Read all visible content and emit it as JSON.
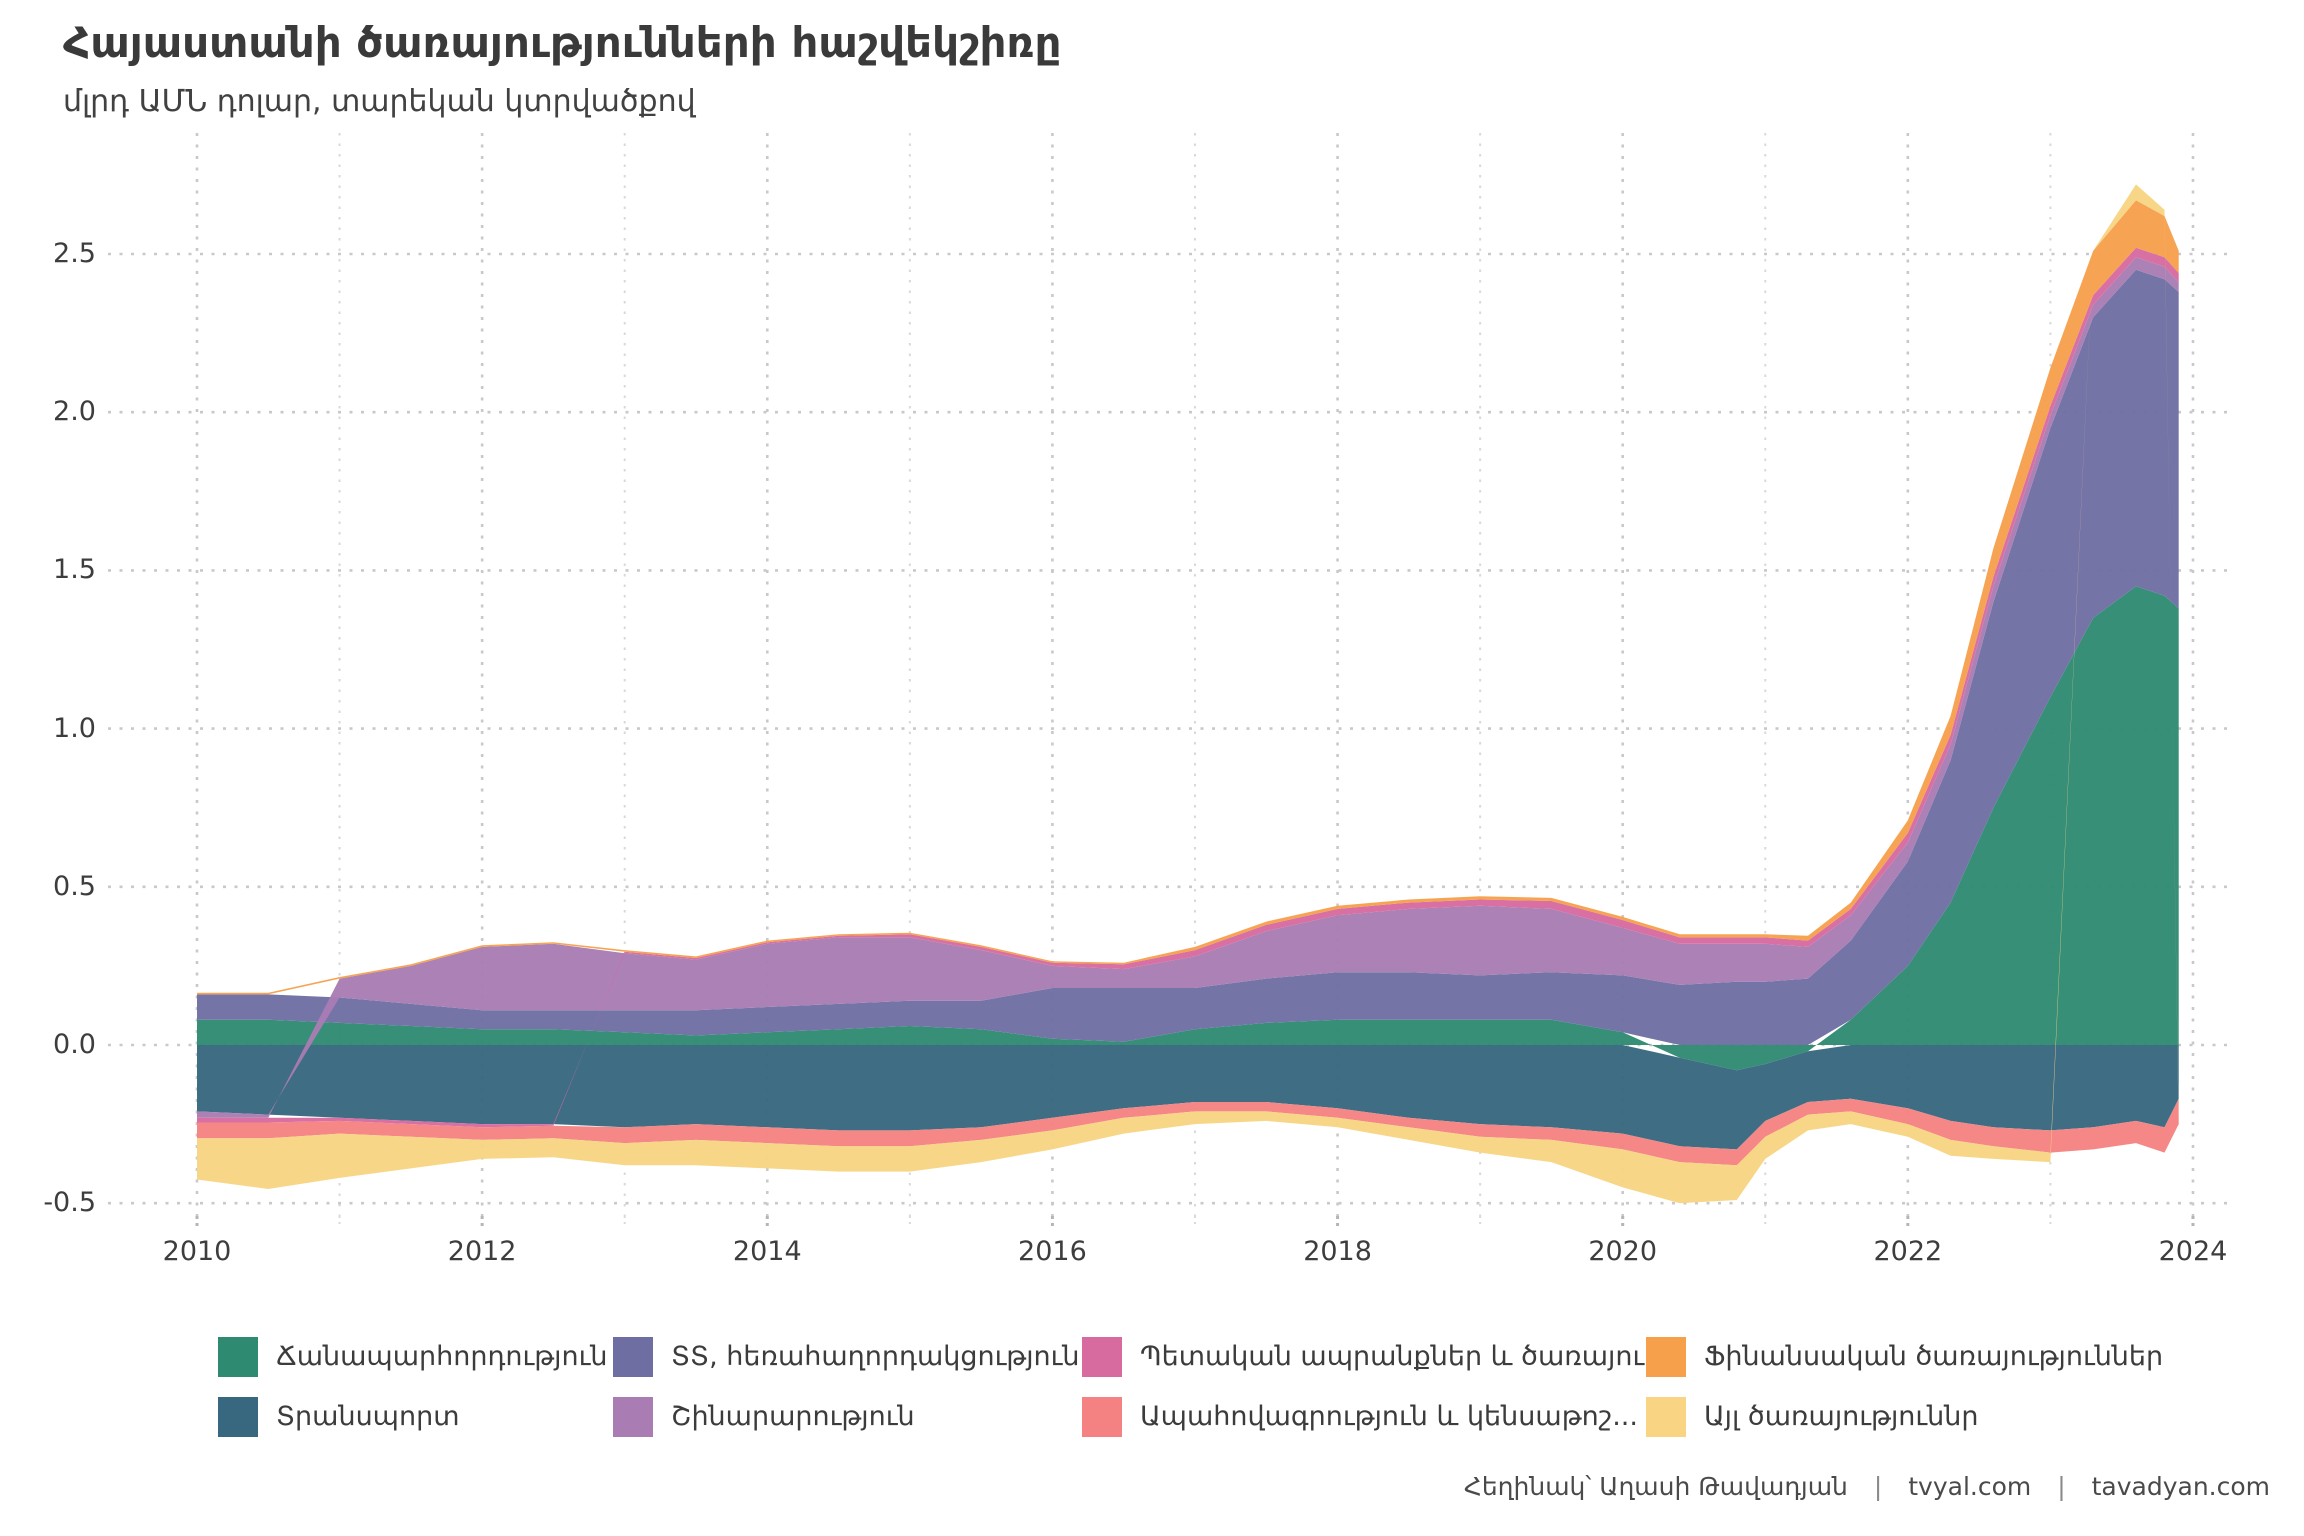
{
  "title": "Հայաստանի ծառայությունների հաշվեկշիռը",
  "subtitle": "մլրդ ԱՄՆ դոլար, տարեկան կտրվածքով",
  "footer": {
    "author": "Հեղինակ՝ Աղասի Թավադյան",
    "separator": "|",
    "site1": "tvyal.com",
    "site2": "tavadyan.com"
  },
  "colors": {
    "travel": "#2f8a72",
    "tt": "#6f6ea3",
    "transport": "#37687f",
    "construction": "#a97cb3",
    "state": "#d76a9f",
    "financial": "#f6a04c",
    "insurance": "#f58282",
    "other": "#f8d483",
    "grid_major": "#c9c9c9",
    "grid_minor": "#d9d9d9",
    "tick_mark": "#b5b5b5",
    "text": "#3d3d3d"
  },
  "chart_data": {
    "type": "area",
    "stacked": true,
    "title": "Հայաստանի ծառայությունների հաշվեկշիռը",
    "subtitle": "մլրդ ԱՄՆ դոլար, տարեկան կտրվածքով",
    "xlabel": "",
    "ylabel": "մլրդ ԱՄՆ դոլար",
    "grid": "dotted",
    "legend_position": "bottom",
    "ylim": [
      -0.62,
      2.85
    ],
    "xlim": [
      2009.4,
      2024.3
    ],
    "yticks": [
      "2.5",
      "2.0",
      "1.5",
      "1.0",
      "0.5",
      "0.0",
      "-0.5"
    ],
    "ytick_values": [
      2.5,
      2.0,
      1.5,
      1.0,
      0.5,
      0.0,
      -0.5
    ],
    "xticks": [
      "2010",
      "2012",
      "2014",
      "2016",
      "2018",
      "2020",
      "2022",
      "2024"
    ],
    "xtick_values": [
      2010,
      2012,
      2014,
      2016,
      2018,
      2020,
      2022,
      2024
    ],
    "xminor_values": [
      2011,
      2013,
      2015,
      2017,
      2019,
      2021,
      2023
    ],
    "x": [
      2010,
      2010.5,
      2011,
      2011.5,
      2012,
      2012.5,
      2013,
      2013.5,
      2014,
      2014.5,
      2015,
      2015.5,
      2016,
      2016.5,
      2017,
      2017.5,
      2018,
      2018.5,
      2019,
      2019.5,
      2020,
      2020.4,
      2020.8,
      2021,
      2021.3,
      2021.6,
      2022,
      2022.3,
      2022.6,
      2023,
      2023.3,
      2023.6,
      2023.8,
      2023.9
    ],
    "series": [
      {
        "key": "travel",
        "name": "Ճանապարհորդություն",
        "color": "#2f8a72",
        "values": [
          0.08,
          0.08,
          0.07,
          0.06,
          0.05,
          0.05,
          0.04,
          0.03,
          0.04,
          0.05,
          0.06,
          0.05,
          0.02,
          0.01,
          0.05,
          0.07,
          0.08,
          0.08,
          0.08,
          0.08,
          0.04,
          -0.04,
          -0.08,
          -0.06,
          -0.02,
          0.08,
          0.25,
          0.45,
          0.75,
          1.1,
          1.35,
          1.45,
          1.42,
          1.38
        ]
      },
      {
        "key": "tt",
        "name": "ՏՏ, հեռահաղորդակցություն",
        "color": "#6f6ea3",
        "values": [
          0.08,
          0.08,
          0.08,
          0.07,
          0.06,
          0.06,
          0.07,
          0.08,
          0.08,
          0.08,
          0.08,
          0.09,
          0.16,
          0.17,
          0.13,
          0.14,
          0.15,
          0.15,
          0.14,
          0.15,
          0.18,
          0.19,
          0.2,
          0.2,
          0.21,
          0.25,
          0.33,
          0.45,
          0.65,
          0.85,
          0.95,
          1.0,
          1.0,
          1.0
        ]
      },
      {
        "key": "transport",
        "name": "Տրանսպորտ",
        "color": "#37687f",
        "values": [
          -0.21,
          -0.22,
          -0.23,
          -0.24,
          -0.25,
          -0.25,
          -0.26,
          -0.25,
          -0.26,
          -0.27,
          -0.27,
          -0.26,
          -0.23,
          -0.2,
          -0.18,
          -0.18,
          -0.2,
          -0.23,
          -0.25,
          -0.26,
          -0.28,
          -0.28,
          -0.25,
          -0.18,
          -0.16,
          -0.17,
          -0.2,
          -0.24,
          -0.26,
          -0.27,
          -0.26,
          -0.24,
          -0.26,
          -0.17
        ]
      },
      {
        "key": "construction",
        "name": "Շինարարություն",
        "color": "#a97cb3",
        "values": [
          -0.02,
          -0.01,
          0.06,
          0.12,
          0.2,
          0.21,
          0.18,
          0.16,
          0.2,
          0.21,
          0.2,
          0.16,
          0.07,
          0.06,
          0.1,
          0.15,
          0.18,
          0.2,
          0.22,
          0.2,
          0.15,
          0.13,
          0.12,
          0.12,
          0.1,
          0.08,
          0.06,
          0.05,
          0.05,
          0.04,
          0.04,
          0.04,
          0.04,
          0.03
        ]
      },
      {
        "key": "state",
        "name": "Պետական ապրանքներ և ծառայու...",
        "color": "#d76a9f",
        "values": [
          -0.015,
          -0.015,
          -0.01,
          -0.01,
          -0.01,
          -0.005,
          0.005,
          0.005,
          0.005,
          0.005,
          0.01,
          0.01,
          0.01,
          0.015,
          0.02,
          0.02,
          0.02,
          0.02,
          0.02,
          0.025,
          0.025,
          0.02,
          0.02,
          0.02,
          0.02,
          0.02,
          0.03,
          0.03,
          0.03,
          0.03,
          0.03,
          0.03,
          0.03,
          0.03
        ]
      },
      {
        "key": "financial",
        "name": "Ֆինանսական ծառայություններ",
        "color": "#f6a04c",
        "values": [
          0.005,
          0.005,
          0.005,
          0.005,
          0.005,
          0.005,
          0.005,
          0.005,
          0.005,
          0.005,
          0.005,
          0.005,
          0.005,
          0.005,
          0.01,
          0.01,
          0.01,
          0.01,
          0.01,
          0.01,
          0.01,
          0.01,
          0.01,
          0.01,
          0.015,
          0.02,
          0.04,
          0.06,
          0.09,
          0.12,
          0.14,
          0.15,
          0.13,
          0.07
        ]
      },
      {
        "key": "insurance",
        "name": "Ապահովագրություն և կենսաթոշ...",
        "color": "#f58282",
        "values": [
          -0.05,
          -0.05,
          -0.04,
          -0.04,
          -0.04,
          -0.04,
          -0.05,
          -0.05,
          -0.05,
          -0.05,
          -0.05,
          -0.04,
          -0.04,
          -0.03,
          -0.03,
          -0.03,
          -0.03,
          -0.03,
          -0.04,
          -0.04,
          -0.05,
          -0.05,
          -0.05,
          -0.05,
          -0.04,
          -0.04,
          -0.05,
          -0.06,
          -0.06,
          -0.07,
          -0.07,
          -0.07,
          -0.08,
          -0.08
        ]
      },
      {
        "key": "other",
        "name": "Այլ ծառայություննր",
        "color": "#f8d483",
        "values": [
          -0.13,
          -0.16,
          -0.14,
          -0.1,
          -0.06,
          -0.06,
          -0.07,
          -0.08,
          -0.08,
          -0.08,
          -0.08,
          -0.07,
          -0.06,
          -0.05,
          -0.04,
          -0.03,
          -0.03,
          -0.04,
          -0.05,
          -0.07,
          -0.12,
          -0.13,
          -0.11,
          -0.07,
          -0.05,
          -0.04,
          -0.04,
          -0.05,
          -0.04,
          -0.03,
          0.0,
          0.05,
          0.02,
          -0.02
        ]
      }
    ]
  },
  "legend": {
    "items": [
      {
        "label": "Ճանապարհորդություն",
        "color_key": "travel"
      },
      {
        "label": "ՏՏ, հեռահաղորդակցություն",
        "color_key": "tt"
      },
      {
        "label": "Պետական ապրանքներ և ծառայու...",
        "color_key": "state"
      },
      {
        "label": "Ֆինանսական ծառայություններ",
        "color_key": "financial"
      },
      {
        "label": "Տրանսպորտ",
        "color_key": "transport"
      },
      {
        "label": "Շինարարություն",
        "color_key": "construction"
      },
      {
        "label": "Ապահովագրություն և կենսաթոշ...",
        "color_key": "insurance"
      },
      {
        "label": "Այլ ծառայություննր",
        "color_key": "other"
      }
    ]
  }
}
